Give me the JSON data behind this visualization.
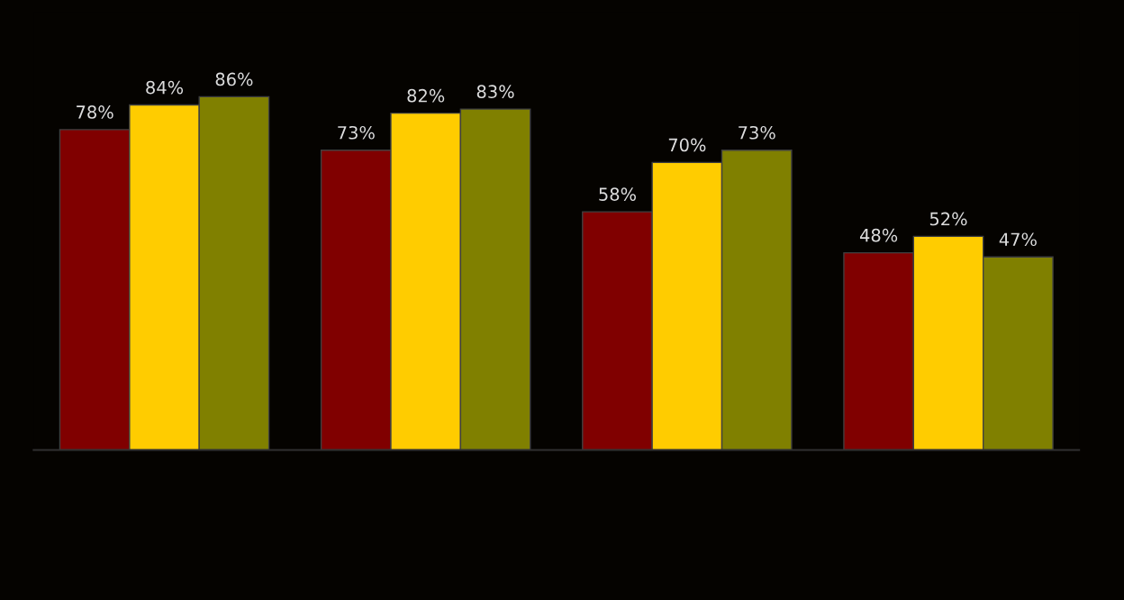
{
  "chart_data": {
    "type": "bar",
    "categories": [
      null,
      null,
      null,
      null
    ],
    "series": [
      {
        "color": "#800000",
        "values": [
          78,
          73,
          58,
          48
        ],
        "value_labels": [
          "78%",
          "73%",
          "58%",
          "48%"
        ]
      },
      {
        "color": "#ffcc00",
        "values": [
          84,
          82,
          70,
          52
        ],
        "value_labels": [
          "84%",
          "82%",
          "70%",
          "52%"
        ]
      },
      {
        "color": "#808000",
        "values": [
          86,
          83,
          73,
          47
        ],
        "value_labels": [
          "86%",
          "83%",
          "73%",
          "47%"
        ]
      }
    ],
    "grid": false,
    "legend": false
  }
}
